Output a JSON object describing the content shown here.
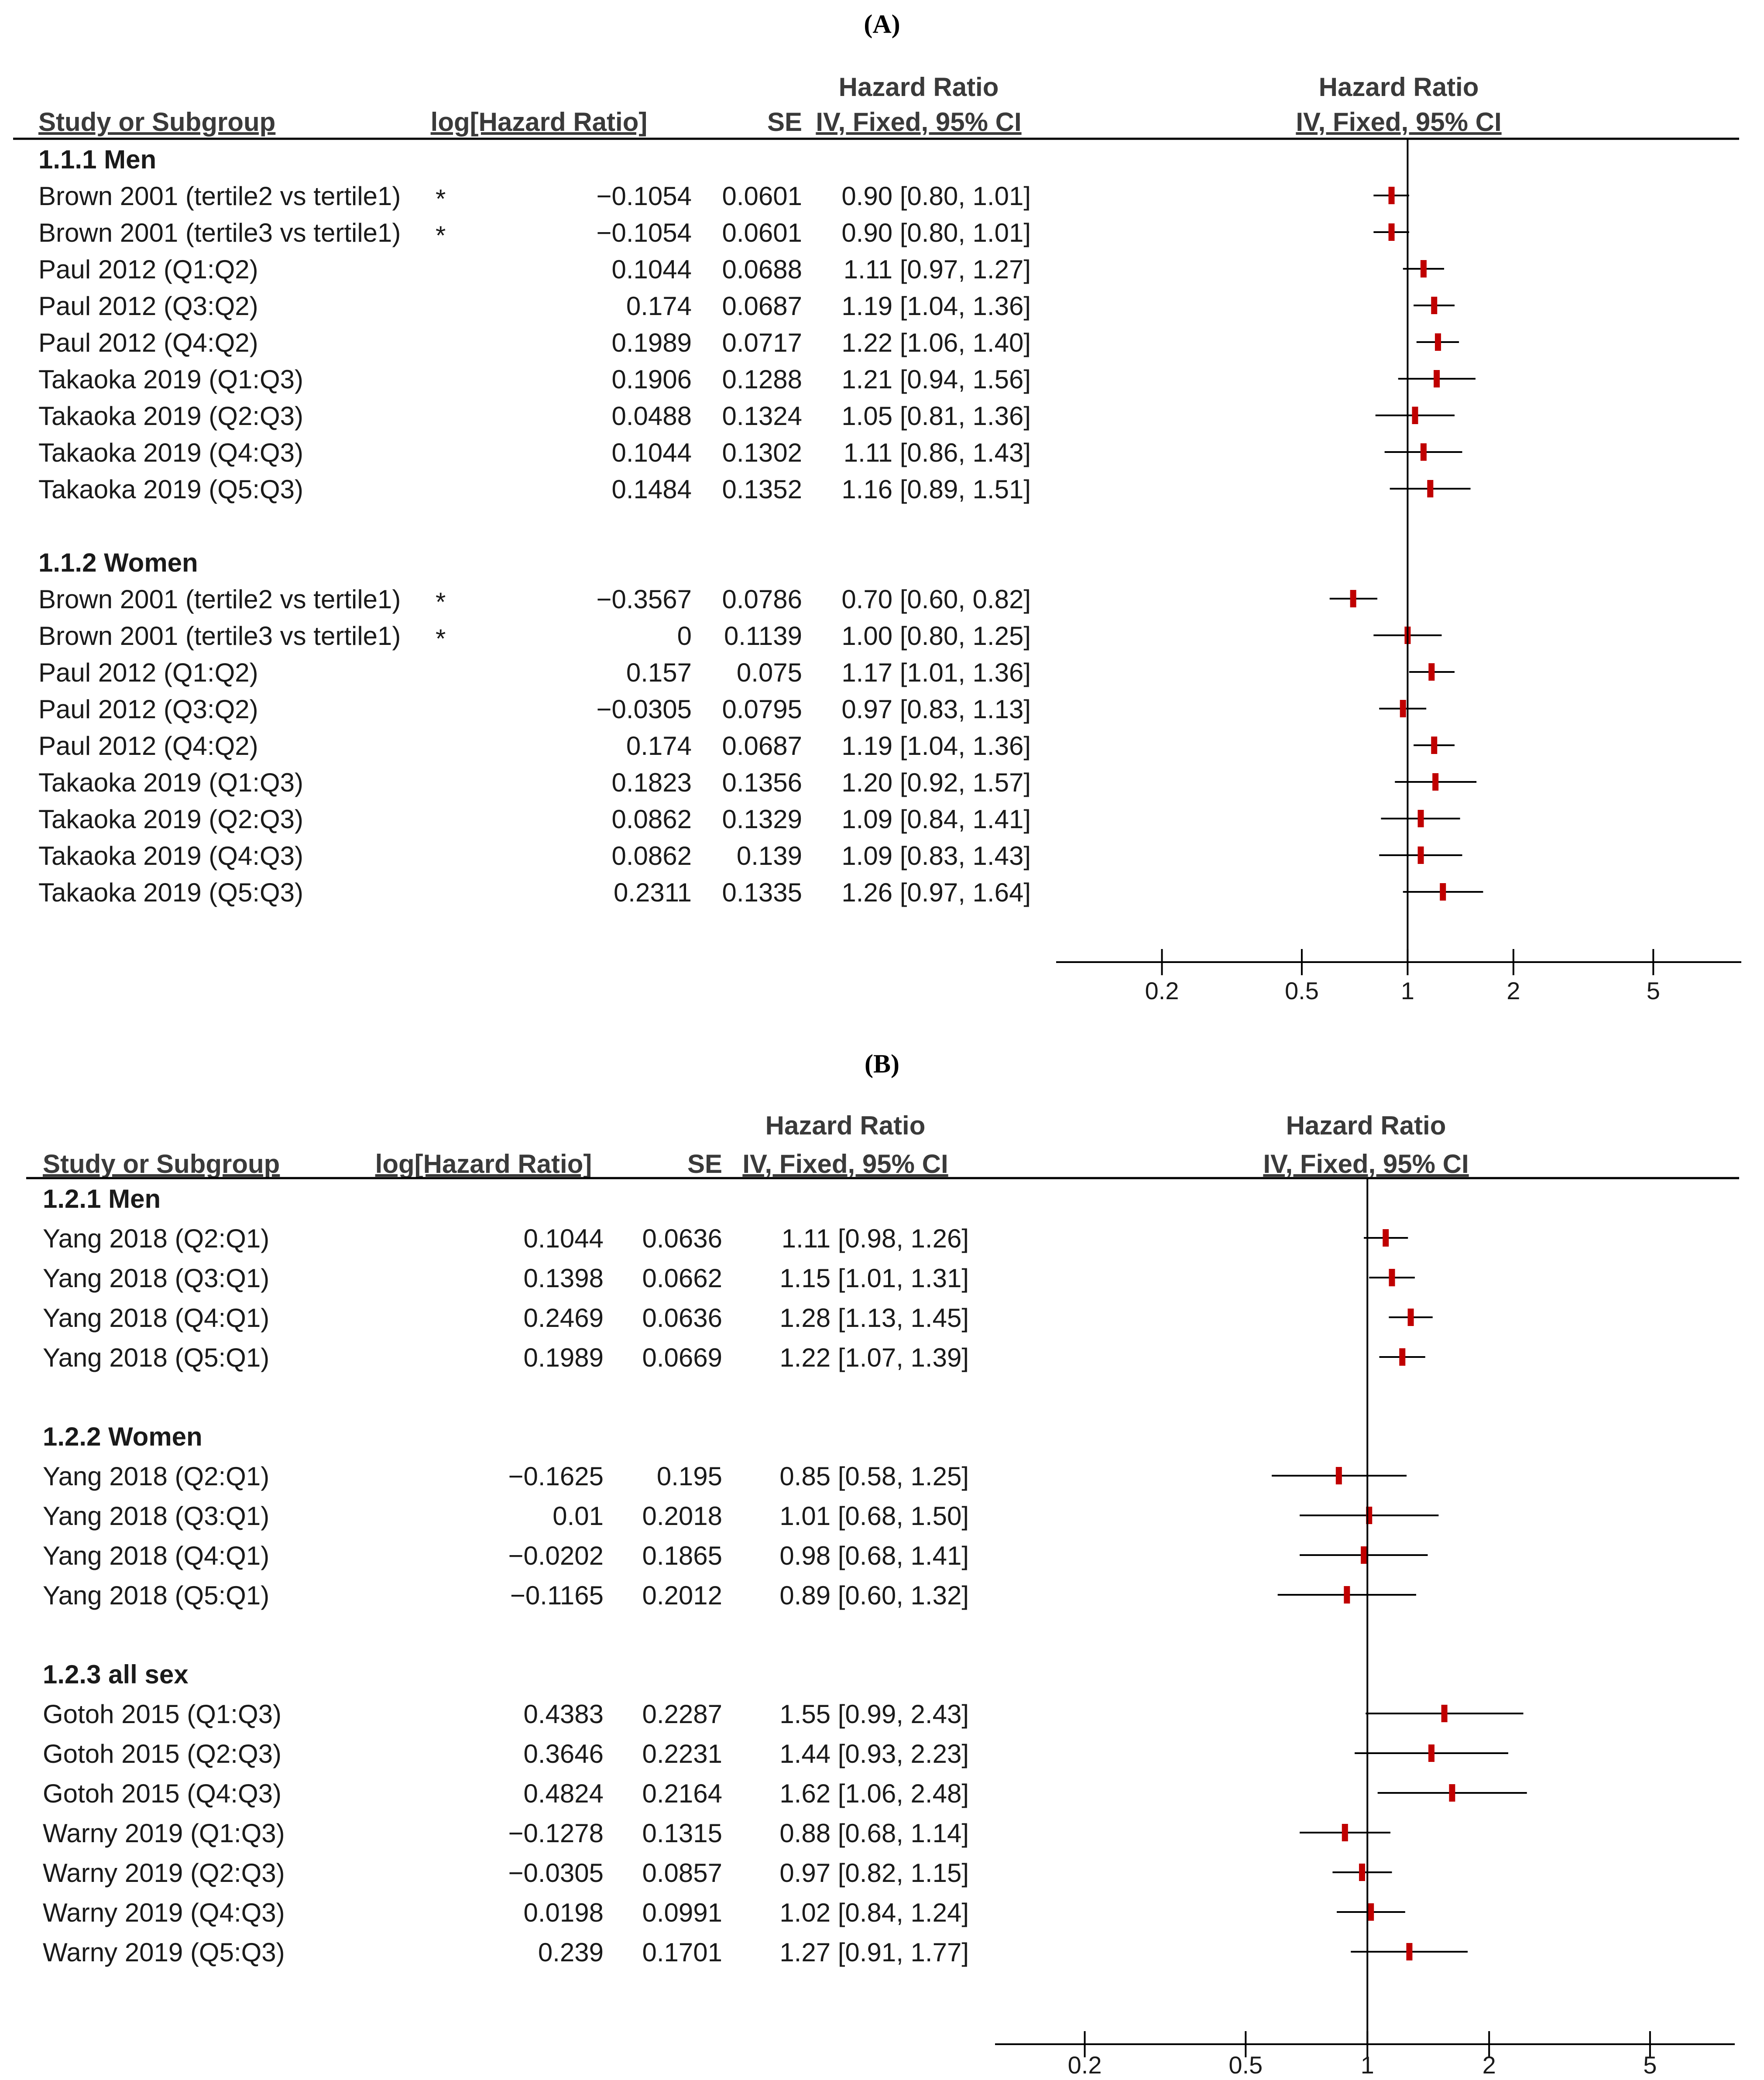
{
  "chart_data": [
    {
      "type": "forest",
      "panel_title": "(A)",
      "panel_letter": "A",
      "headers": {
        "study": "Study or Subgroup",
        "loghr": "log[Hazard Ratio]",
        "se": "SE",
        "hr_top": "Hazard Ratio",
        "hr_bottom": "IV, Fixed, 95% CI",
        "plot_top": "Hazard Ratio",
        "plot_bottom": "IV, Fixed, 95% CI"
      },
      "xaxis": {
        "scale": "log",
        "ticks": [
          "0.2",
          "0.5",
          "1",
          "2",
          "5"
        ],
        "tick_values": [
          0.2,
          0.5,
          1,
          2,
          5
        ],
        "xlim": [
          0.1,
          8.9
        ]
      },
      "groups": [
        {
          "name": "1.1.1 Men",
          "rows": [
            {
              "study": "Brown 2001 (tertile2 vs tertile1)",
              "mark": "*",
              "loghr": "−0.1054",
              "se": "0.0601",
              "hr_text": "0.90 [0.80, 1.01]",
              "hr": 0.9,
              "lo": 0.8,
              "hi": 1.01
            },
            {
              "study": "Brown 2001 (tertile3 vs tertile1)",
              "mark": "*",
              "loghr": "−0.1054",
              "se": "0.0601",
              "hr_text": "0.90 [0.80, 1.01]",
              "hr": 0.9,
              "lo": 0.8,
              "hi": 1.01
            },
            {
              "study": "Paul 2012 (Q1:Q2)",
              "mark": "",
              "loghr": "0.1044",
              "se": "0.0688",
              "hr_text": "1.11 [0.97, 1.27]",
              "hr": 1.11,
              "lo": 0.97,
              "hi": 1.27
            },
            {
              "study": "Paul 2012 (Q3:Q2)",
              "mark": "",
              "loghr": "0.174",
              "se": "0.0687",
              "hr_text": "1.19 [1.04, 1.36]",
              "hr": 1.19,
              "lo": 1.04,
              "hi": 1.36
            },
            {
              "study": "Paul 2012 (Q4:Q2)",
              "mark": "",
              "loghr": "0.1989",
              "se": "0.0717",
              "hr_text": "1.22 [1.06, 1.40]",
              "hr": 1.22,
              "lo": 1.06,
              "hi": 1.4
            },
            {
              "study": "Takaoka 2019 (Q1:Q3)",
              "mark": "",
              "loghr": "0.1906",
              "se": "0.1288",
              "hr_text": "1.21 [0.94, 1.56]",
              "hr": 1.21,
              "lo": 0.94,
              "hi": 1.56
            },
            {
              "study": "Takaoka 2019 (Q2:Q3)",
              "mark": "",
              "loghr": "0.0488",
              "se": "0.1324",
              "hr_text": "1.05 [0.81, 1.36]",
              "hr": 1.05,
              "lo": 0.81,
              "hi": 1.36
            },
            {
              "study": "Takaoka 2019 (Q4:Q3)",
              "mark": "",
              "loghr": "0.1044",
              "se": "0.1302",
              "hr_text": "1.11 [0.86, 1.43]",
              "hr": 1.11,
              "lo": 0.86,
              "hi": 1.43
            },
            {
              "study": "Takaoka 2019 (Q5:Q3)",
              "mark": "",
              "loghr": "0.1484",
              "se": "0.1352",
              "hr_text": "1.16 [0.89, 1.51]",
              "hr": 1.16,
              "lo": 0.89,
              "hi": 1.51
            }
          ]
        },
        {
          "name": "1.1.2 Women",
          "rows": [
            {
              "study": "Brown 2001 (tertile2 vs tertile1)",
              "mark": "*",
              "loghr": "−0.3567",
              "se": "0.0786",
              "hr_text": "0.70 [0.60, 0.82]",
              "hr": 0.7,
              "lo": 0.6,
              "hi": 0.82
            },
            {
              "study": "Brown 2001 (tertile3 vs tertile1)",
              "mark": "*",
              "loghr": "0",
              "se": "0.1139",
              "hr_text": "1.00 [0.80, 1.25]",
              "hr": 1.0,
              "lo": 0.8,
              "hi": 1.25
            },
            {
              "study": "Paul 2012 (Q1:Q2)",
              "mark": "",
              "loghr": "0.157",
              "se": "0.075",
              "hr_text": "1.17 [1.01, 1.36]",
              "hr": 1.17,
              "lo": 1.01,
              "hi": 1.36
            },
            {
              "study": "Paul 2012 (Q3:Q2)",
              "mark": "",
              "loghr": "−0.0305",
              "se": "0.0795",
              "hr_text": "0.97 [0.83, 1.13]",
              "hr": 0.97,
              "lo": 0.83,
              "hi": 1.13
            },
            {
              "study": "Paul 2012 (Q4:Q2)",
              "mark": "",
              "loghr": "0.174",
              "se": "0.0687",
              "hr_text": "1.19 [1.04, 1.36]",
              "hr": 1.19,
              "lo": 1.04,
              "hi": 1.36
            },
            {
              "study": "Takaoka 2019 (Q1:Q3)",
              "mark": "",
              "loghr": "0.1823",
              "se": "0.1356",
              "hr_text": "1.20 [0.92, 1.57]",
              "hr": 1.2,
              "lo": 0.92,
              "hi": 1.57
            },
            {
              "study": "Takaoka 2019 (Q2:Q3)",
              "mark": "",
              "loghr": "0.0862",
              "se": "0.1329",
              "hr_text": "1.09 [0.84, 1.41]",
              "hr": 1.09,
              "lo": 0.84,
              "hi": 1.41
            },
            {
              "study": "Takaoka 2019 (Q4:Q3)",
              "mark": "",
              "loghr": "0.0862",
              "se": "0.139",
              "hr_text": "1.09 [0.83, 1.43]",
              "hr": 1.09,
              "lo": 0.83,
              "hi": 1.43
            },
            {
              "study": "Takaoka 2019 (Q5:Q3)",
              "mark": "",
              "loghr": "0.2311",
              "se": "0.1335",
              "hr_text": "1.26 [0.97, 1.64]",
              "hr": 1.26,
              "lo": 0.97,
              "hi": 1.64
            }
          ]
        }
      ]
    },
    {
      "type": "forest",
      "panel_title": "(B)",
      "panel_letter": "B",
      "headers": {
        "study": "Study or Subgroup",
        "loghr": "log[Hazard Ratio]",
        "se": "SE",
        "hr_top": "Hazard Ratio",
        "hr_bottom": "IV, Fixed, 95% CI",
        "plot_top": "Hazard Ratio",
        "plot_bottom": "IV, Fixed, 95% CI"
      },
      "xaxis": {
        "scale": "log",
        "ticks": [
          "0.2",
          "0.5",
          "1",
          "2",
          "5"
        ],
        "tick_values": [
          0.2,
          0.5,
          1,
          2,
          5
        ],
        "xlim": [
          0.12,
          8.1
        ]
      },
      "groups": [
        {
          "name": "1.2.1 Men",
          "rows": [
            {
              "study": "Yang 2018 (Q2:Q1)",
              "mark": "",
              "loghr": "0.1044",
              "se": "0.0636",
              "hr_text": "1.11 [0.98, 1.26]",
              "hr": 1.11,
              "lo": 0.98,
              "hi": 1.26
            },
            {
              "study": "Yang 2018 (Q3:Q1)",
              "mark": "",
              "loghr": "0.1398",
              "se": "0.0662",
              "hr_text": "1.15 [1.01, 1.31]",
              "hr": 1.15,
              "lo": 1.01,
              "hi": 1.31
            },
            {
              "study": "Yang 2018 (Q4:Q1)",
              "mark": "",
              "loghr": "0.2469",
              "se": "0.0636",
              "hr_text": "1.28 [1.13, 1.45]",
              "hr": 1.28,
              "lo": 1.13,
              "hi": 1.45
            },
            {
              "study": "Yang 2018 (Q5:Q1)",
              "mark": "",
              "loghr": "0.1989",
              "se": "0.0669",
              "hr_text": "1.22 [1.07, 1.39]",
              "hr": 1.22,
              "lo": 1.07,
              "hi": 1.39
            }
          ]
        },
        {
          "name": "1.2.2 Women",
          "rows": [
            {
              "study": "Yang 2018 (Q2:Q1)",
              "mark": "",
              "loghr": "−0.1625",
              "se": "0.195",
              "hr_text": "0.85 [0.58, 1.25]",
              "hr": 0.85,
              "lo": 0.58,
              "hi": 1.25
            },
            {
              "study": "Yang 2018 (Q3:Q1)",
              "mark": "",
              "loghr": "0.01",
              "se": "0.2018",
              "hr_text": "1.01 [0.68, 1.50]",
              "hr": 1.01,
              "lo": 0.68,
              "hi": 1.5
            },
            {
              "study": "Yang 2018 (Q4:Q1)",
              "mark": "",
              "loghr": "−0.0202",
              "se": "0.1865",
              "hr_text": "0.98 [0.68, 1.41]",
              "hr": 0.98,
              "lo": 0.68,
              "hi": 1.41
            },
            {
              "study": "Yang 2018 (Q5:Q1)",
              "mark": "",
              "loghr": "−0.1165",
              "se": "0.2012",
              "hr_text": "0.89 [0.60, 1.32]",
              "hr": 0.89,
              "lo": 0.6,
              "hi": 1.32
            }
          ]
        },
        {
          "name": "1.2.3 all sex",
          "rows": [
            {
              "study": "Gotoh 2015 (Q1:Q3)",
              "mark": "",
              "loghr": "0.4383",
              "se": "0.2287",
              "hr_text": "1.55 [0.99, 2.43]",
              "hr": 1.55,
              "lo": 0.99,
              "hi": 2.43
            },
            {
              "study": "Gotoh 2015 (Q2:Q3)",
              "mark": "",
              "loghr": "0.3646",
              "se": "0.2231",
              "hr_text": "1.44 [0.93, 2.23]",
              "hr": 1.44,
              "lo": 0.93,
              "hi": 2.23
            },
            {
              "study": "Gotoh 2015 (Q4:Q3)",
              "mark": "",
              "loghr": "0.4824",
              "se": "0.2164",
              "hr_text": "1.62 [1.06, 2.48]",
              "hr": 1.62,
              "lo": 1.06,
              "hi": 2.48
            },
            {
              "study": "Warny 2019 (Q1:Q3)",
              "mark": "",
              "loghr": "−0.1278",
              "se": "0.1315",
              "hr_text": "0.88 [0.68, 1.14]",
              "hr": 0.88,
              "lo": 0.68,
              "hi": 1.14
            },
            {
              "study": "Warny 2019 (Q2:Q3)",
              "mark": "",
              "loghr": "−0.0305",
              "se": "0.0857",
              "hr_text": "0.97 [0.82, 1.15]",
              "hr": 0.97,
              "lo": 0.82,
              "hi": 1.15
            },
            {
              "study": "Warny 2019 (Q4:Q3)",
              "mark": "",
              "loghr": "0.0198",
              "se": "0.0991",
              "hr_text": "1.02 [0.84, 1.24]",
              "hr": 1.02,
              "lo": 0.84,
              "hi": 1.24
            },
            {
              "study": "Warny 2019 (Q5:Q3)",
              "mark": "",
              "loghr": "0.239",
              "se": "0.1701",
              "hr_text": "1.27 [0.91, 1.77]",
              "hr": 1.27,
              "lo": 0.91,
              "hi": 1.77
            }
          ]
        }
      ]
    }
  ],
  "colors": {
    "marker": "#c00000",
    "line": "#000000",
    "text": "#1a1a1a"
  }
}
